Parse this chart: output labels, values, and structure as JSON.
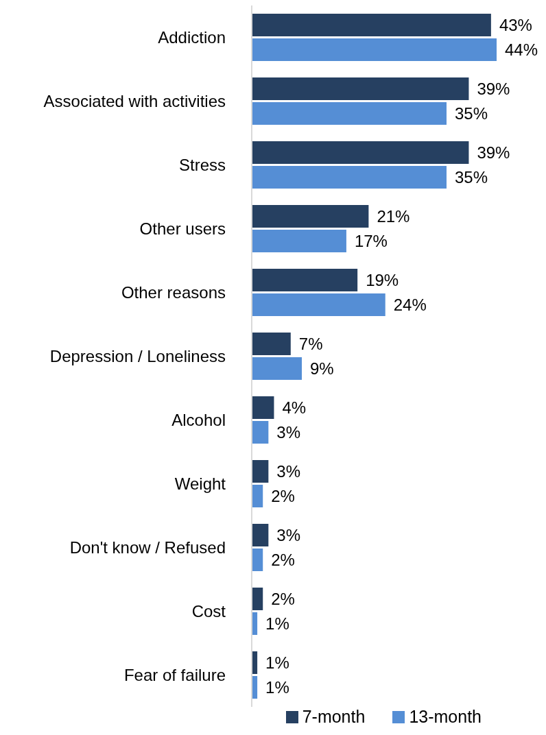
{
  "chart_data": {
    "type": "bar",
    "orientation": "horizontal",
    "categories": [
      "Addiction",
      "Associated with activities",
      "Stress",
      "Other users",
      "Other reasons",
      "Depression / Loneliness",
      "Alcohol",
      "Weight",
      "Don't know / Refused",
      "Cost",
      "Fear of failure"
    ],
    "series": [
      {
        "name": "7-month",
        "color": "#264061",
        "values": [
          43,
          39,
          39,
          21,
          19,
          7,
          4,
          3,
          3,
          2,
          1
        ],
        "value_labels": [
          "43%",
          "39%",
          "39%",
          "21%",
          "19%",
          "7%",
          "4%",
          "3%",
          "3%",
          "2%",
          "1%"
        ]
      },
      {
        "name": "13-month",
        "color": "#558ed5",
        "values": [
          44,
          35,
          35,
          17,
          24,
          9,
          3,
          2,
          2,
          1,
          1
        ],
        "value_labels": [
          "44%",
          "35%",
          "35%",
          "17%",
          "24%",
          "9%",
          "3%",
          "2%",
          "2%",
          "1%",
          "1%"
        ]
      }
    ],
    "legend": "bottom right",
    "grid": false
  }
}
